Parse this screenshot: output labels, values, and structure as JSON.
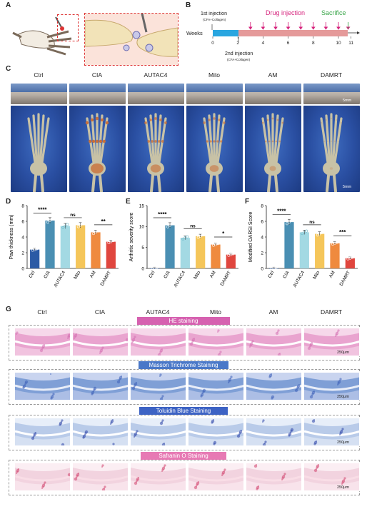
{
  "panels": {
    "a": "A",
    "b": "B",
    "c": "C",
    "d": "D",
    "e": "E",
    "f": "F",
    "g": "G"
  },
  "timeline": {
    "axis_label": "Weeks",
    "first_injection": "1st injection",
    "first_injection_sup": "st",
    "first_injection_sub": "(CFA+Collagen)",
    "second_injection": "2nd injection",
    "second_injection_sub": "(CFA+Collagen)",
    "drug_label": "Drug injection",
    "sacrifice_label": "Sacrifice",
    "ticks": [
      "0",
      "2",
      "4",
      "6",
      "8",
      "10",
      "11"
    ],
    "colors": {
      "drug": "#d6247d",
      "sacrifice": "#3aa64a",
      "phase1": "#29a6e0",
      "phase2": "#e59a9a"
    }
  },
  "groups": [
    "Ctrl",
    "CIA",
    "AUTAC4",
    "Mito",
    "AM",
    "DAMRT"
  ],
  "scale_bar": "5mm",
  "hist_scale": "250μm",
  "stains": [
    {
      "label": "HE staining",
      "color": "#d661b0"
    },
    {
      "label": "Masson Trichrome Staining",
      "color": "#4a78c8"
    },
    {
      "label": "Toluidin Blue Staining",
      "color": "#3d63c4"
    },
    {
      "label": "Safranin O Staining",
      "color": "#e77ab4"
    }
  ],
  "chart_data": [
    {
      "type": "bar",
      "panel": "D",
      "ylabel": "Paw thickness (mm)",
      "categories": [
        "Ctrl",
        "CIA",
        "AUTAC4",
        "Mito",
        "AM",
        "DAMRT"
      ],
      "values": [
        2.4,
        6.1,
        5.4,
        5.5,
        4.6,
        3.4
      ],
      "ylim": [
        0,
        8
      ],
      "yticks": [
        "0",
        "2",
        "4",
        "6",
        "8"
      ],
      "significance": [
        {
          "from": "Ctrl",
          "to": "CIA",
          "label": "****"
        },
        {
          "from": "AUTAC4",
          "to": "Mito",
          "label": "ns"
        },
        {
          "from": "AM",
          "to": "DAMRT",
          "label": "**"
        }
      ]
    },
    {
      "type": "bar",
      "panel": "E",
      "ylabel": "Arthritic severity score",
      "categories": [
        "Ctrl",
        "CIA",
        "AUTAC4",
        "Mito",
        "AM",
        "DAMRT"
      ],
      "values": [
        0,
        10.3,
        7.3,
        7.7,
        5.7,
        3.3
      ],
      "ylim": [
        0,
        15
      ],
      "yticks": [
        "0",
        "5",
        "10",
        "15"
      ],
      "significance": [
        {
          "from": "Ctrl",
          "to": "CIA",
          "label": "****"
        },
        {
          "from": "AUTAC4",
          "to": "Mito",
          "label": "ns"
        },
        {
          "from": "AM",
          "to": "DAMRT",
          "label": "*"
        }
      ]
    },
    {
      "type": "bar",
      "panel": "F",
      "ylabel": "Modified OARSI Score",
      "categories": [
        "Ctrl",
        "CIA",
        "AUTAC4",
        "Mito",
        "AM",
        "DAMRT"
      ],
      "values": [
        0,
        5.9,
        4.6,
        4.4,
        3.2,
        1.3
      ],
      "ylim": [
        0,
        8
      ],
      "yticks": [
        "0",
        "2",
        "4",
        "6",
        "8"
      ],
      "significance": [
        {
          "from": "Ctrl",
          "to": "CIA",
          "label": "****"
        },
        {
          "from": "AUTAC4",
          "to": "Mito",
          "label": "ns"
        },
        {
          "from": "AM",
          "to": "DAMRT",
          "label": "***"
        }
      ]
    }
  ],
  "bar_colors": [
    "#2b5aa5",
    "#4a8fb3",
    "#a3d9e3",
    "#f5c65a",
    "#ef8a3e",
    "#e0463e"
  ]
}
